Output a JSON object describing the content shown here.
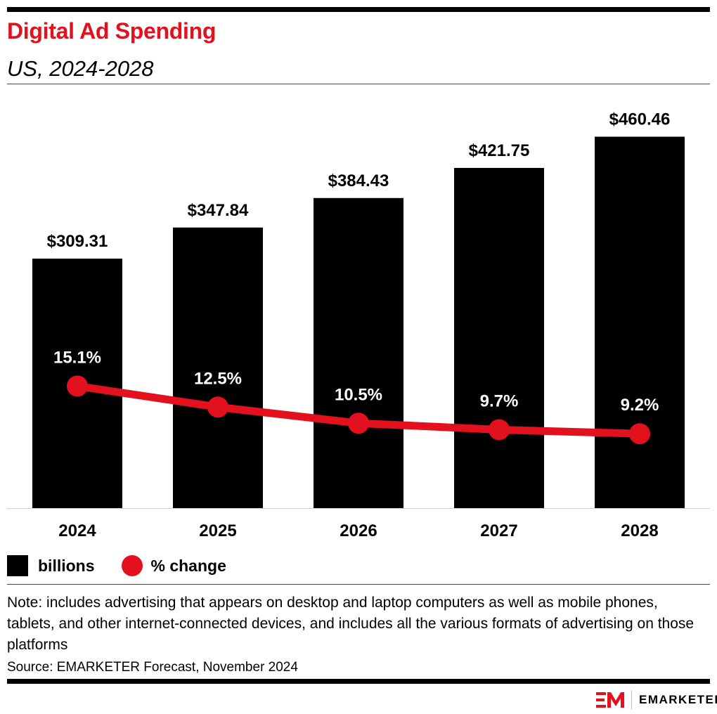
{
  "header": {
    "title": "Digital Ad Spending",
    "subtitle": "US, 2024-2028"
  },
  "chart_data": {
    "type": "bar",
    "categories": [
      "2024",
      "2025",
      "2026",
      "2027",
      "2028"
    ],
    "series": [
      {
        "name": "billions",
        "type": "bar",
        "values": [
          309.31,
          347.84,
          384.43,
          421.75,
          460.46
        ],
        "labels": [
          "$309.31",
          "$347.84",
          "$384.43",
          "$421.75",
          "$460.46"
        ],
        "color": "#000000"
      },
      {
        "name": "% change",
        "type": "line",
        "values": [
          15.1,
          12.5,
          10.5,
          9.7,
          9.2
        ],
        "labels": [
          "15.1%",
          "12.5%",
          "10.5%",
          "9.7%",
          "9.2%"
        ],
        "color": "#e3101e"
      }
    ],
    "title": "Digital Ad Spending",
    "subtitle": "US, 2024-2028",
    "grid": false,
    "legend_position": "bottom-left"
  },
  "legend": {
    "bar_label": "billions",
    "line_label": "% change"
  },
  "footer": {
    "note": "Note: includes advertising that appears on desktop and laptop computers as well as mobile phones, tablets, and other internet-connected devices, and includes all the various formats of advertising on those platforms",
    "source": "Source: EMARKETER Forecast, November 2024",
    "logo_text": "EMARKETER",
    "logo_mark": "EM"
  },
  "colors": {
    "accent": "#e3101e",
    "bar": "#000000",
    "baseline": "#c9d3de"
  }
}
